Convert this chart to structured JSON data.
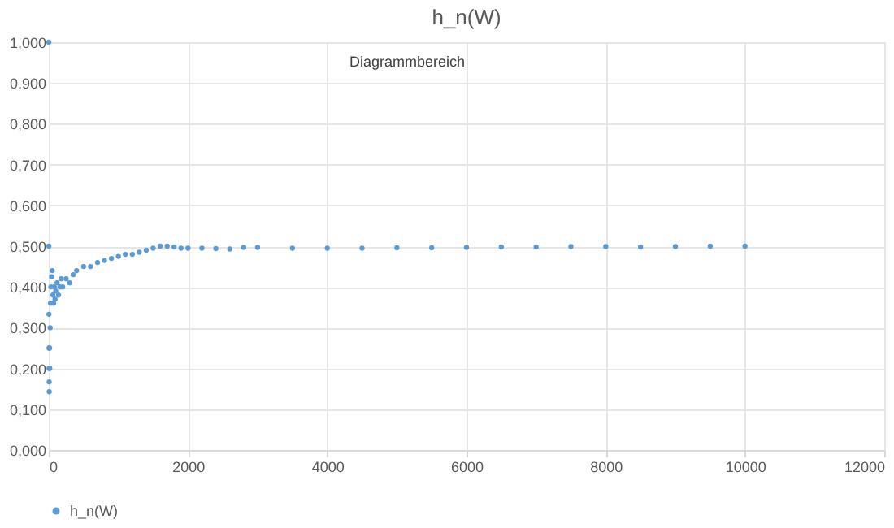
{
  "chart_data": {
    "type": "scatter",
    "title": "h_n(W)",
    "x": [
      1,
      2,
      3,
      4,
      5,
      6,
      7,
      8,
      10,
      12,
      15,
      20,
      25,
      30,
      40,
      50,
      60,
      70,
      80,
      90,
      100,
      120,
      140,
      160,
      180,
      200,
      250,
      300,
      350,
      400,
      500,
      600,
      700,
      800,
      900,
      1000,
      1100,
      1200,
      1300,
      1400,
      1500,
      1600,
      1700,
      1800,
      1900,
      2000,
      2200,
      2400,
      2600,
      2800,
      3000,
      3500,
      4000,
      4500,
      5000,
      5500,
      6000,
      6500,
      7000,
      7500,
      8000,
      8500,
      9000,
      9500,
      10000
    ],
    "series": [
      {
        "name": "h_n(W)",
        "color": "#5b9bd5",
        "values": [
          1.0,
          0.5,
          0.333,
          0.25,
          0.2,
          0.167,
          0.143,
          0.25,
          0.2,
          0.25,
          0.2,
          0.3,
          0.36,
          0.4,
          0.425,
          0.44,
          0.38,
          0.36,
          0.4,
          0.37,
          0.39,
          0.41,
          0.38,
          0.4,
          0.42,
          0.4,
          0.42,
          0.41,
          0.43,
          0.44,
          0.45,
          0.45,
          0.46,
          0.465,
          0.47,
          0.475,
          0.48,
          0.48,
          0.485,
          0.49,
          0.495,
          0.5,
          0.5,
          0.498,
          0.495,
          0.495,
          0.495,
          0.494,
          0.493,
          0.497,
          0.497,
          0.495,
          0.495,
          0.495,
          0.496,
          0.496,
          0.497,
          0.498,
          0.498,
          0.499,
          0.499,
          0.498,
          0.499,
          0.5,
          0.5
        ]
      }
    ],
    "xlim": [
      0,
      12000
    ],
    "xticks": [
      0,
      2000,
      4000,
      6000,
      8000,
      10000,
      12000
    ],
    "ylim": [
      0,
      1
    ],
    "yticks": [
      {
        "value": 0,
        "label": "0,000"
      },
      {
        "value": 0.1,
        "label": "0,100"
      },
      {
        "value": 0.2,
        "label": "0,200"
      },
      {
        "value": 0.3,
        "label": "0,300"
      },
      {
        "value": 0.4,
        "label": "0,400"
      },
      {
        "value": 0.5,
        "label": "0,500"
      },
      {
        "value": 0.6,
        "label": "0,600"
      },
      {
        "value": 0.7,
        "label": "0,700"
      },
      {
        "value": 0.8,
        "label": "0,800"
      },
      {
        "value": 0.9,
        "label": "0,900"
      },
      {
        "value": 1,
        "label": "1,000"
      }
    ],
    "grid": true,
    "legend": "bottom",
    "marker": "circle",
    "annotations": [
      "Diagrammbereich"
    ]
  }
}
